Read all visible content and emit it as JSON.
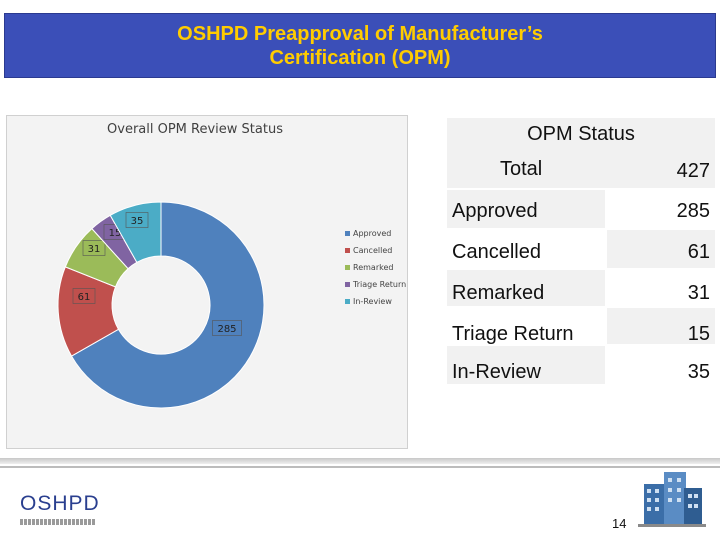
{
  "slide": {
    "title_line1": "OSHPD Preapproval of Manufacturer’s",
    "title_line2": "Certification (OPM)",
    "page_number": "14",
    "logo_text": "OSHPD"
  },
  "chart_data": {
    "type": "pie",
    "donut": true,
    "title": "Overall OPM Review Status",
    "categories": [
      "Approved",
      "Cancelled",
      "Remarked",
      "Triage Return",
      "In-Review"
    ],
    "values": [
      285,
      61,
      31,
      15,
      35
    ],
    "colors": [
      "#4f81bd",
      "#c0504d",
      "#9bbb59",
      "#8064a2",
      "#4bacc6"
    ],
    "legend_position": "right",
    "data_labels": [
      "285",
      "61",
      "31",
      "15",
      "35"
    ]
  },
  "table": {
    "header": "OPM Status",
    "total_label": "Total",
    "total_value": "427",
    "rows": [
      {
        "label": "Approved",
        "value": "285"
      },
      {
        "label": "Cancelled",
        "value": "61"
      },
      {
        "label": "Remarked",
        "value": "31"
      },
      {
        "label": "Triage Return",
        "value": "15"
      },
      {
        "label": "In-Review",
        "value": "35"
      }
    ]
  }
}
